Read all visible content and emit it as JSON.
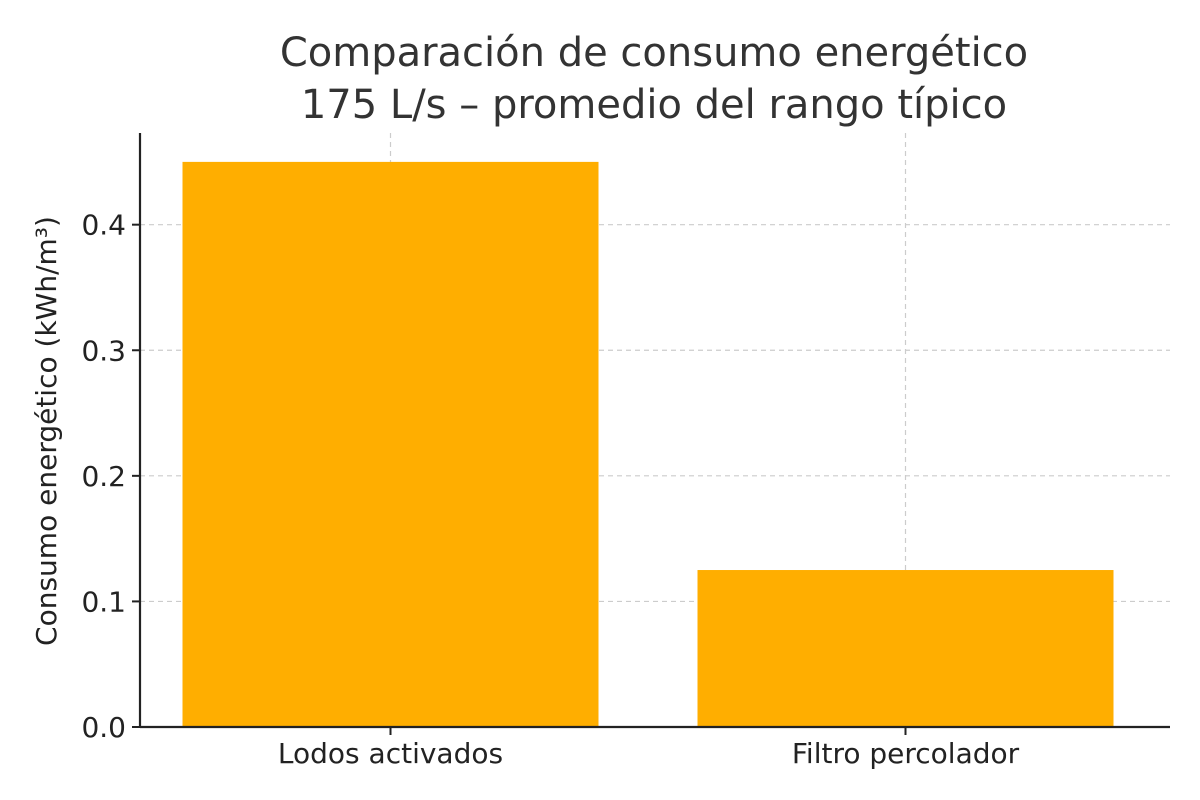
{
  "chart_data": {
    "type": "bar",
    "title_lines": [
      "Comparación de consumo energético",
      "175 L/s – promedio del rango típico"
    ],
    "xlabel": "",
    "ylabel": "Consumo energético (kWh/m³)",
    "categories": [
      "Lodos activados",
      "Filtro percolador"
    ],
    "values": [
      0.45,
      0.125
    ],
    "ylim": [
      0,
      0.473
    ],
    "yticks": [
      0.0,
      0.1,
      0.2,
      0.3,
      0.4
    ],
    "ytick_labels": [
      "0.0",
      "0.1",
      "0.2",
      "0.3",
      "0.4"
    ],
    "grid": true,
    "bar_color": "#FFAE00",
    "axis_color": "#222222",
    "grid_color": "#cccccc"
  }
}
